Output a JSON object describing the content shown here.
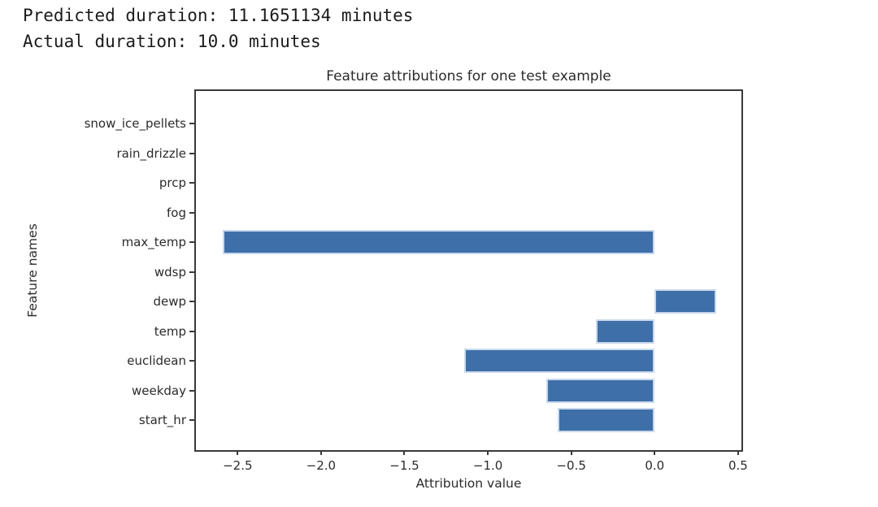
{
  "header": {
    "line1": "Predicted duration: 11.1651134 minutes",
    "line2": "Actual duration: 10.0 minutes"
  },
  "chart_data": {
    "type": "bar",
    "orientation": "horizontal",
    "title": "Feature attributions for one test example",
    "xlabel": "Attribution value",
    "ylabel": "Feature names",
    "categories": [
      "snow_ice_pellets",
      "rain_drizzle",
      "prcp",
      "fog",
      "max_temp",
      "wdsp",
      "dewp",
      "temp",
      "euclidean",
      "weekday",
      "start_hr"
    ],
    "values": [
      0,
      0,
      0,
      0,
      -2.59,
      0,
      0.37,
      -0.35,
      -1.14,
      -0.65,
      -0.58
    ],
    "xlim": [
      -2.75,
      0.52
    ],
    "xtick_values": [
      -2.5,
      -2.0,
      -1.5,
      -1.0,
      -0.5,
      0.0,
      0.5
    ],
    "xtick_labels": [
      "−2.5",
      "−2.0",
      "−1.5",
      "−1.0",
      "−0.5",
      "0.0",
      "0.5"
    ],
    "grid": false,
    "legend": "none",
    "bar_color": "#3f6fa9",
    "bar_edge_color": "#c9d9ec"
  }
}
